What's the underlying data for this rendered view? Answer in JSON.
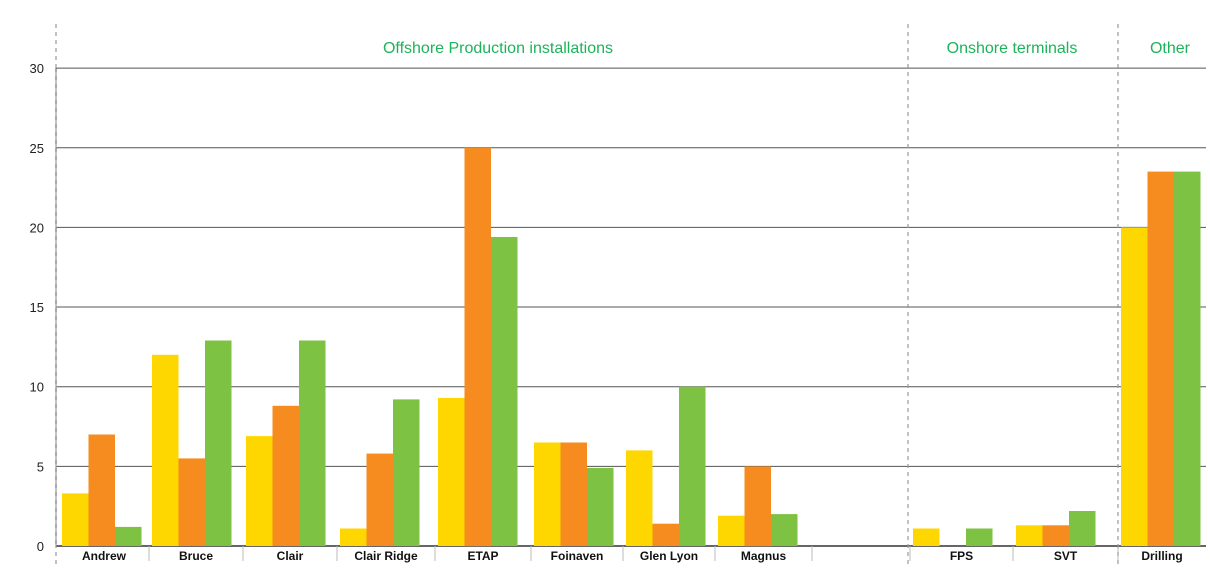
{
  "chart_data": {
    "type": "bar",
    "title": "",
    "xlabel": "",
    "ylabel": "",
    "ylim": [
      0,
      32
    ],
    "yticks": [
      0,
      5,
      10,
      15,
      20,
      25,
      30
    ],
    "grid": true,
    "legend": "none",
    "groups": [
      {
        "label": "Offshore Production installations",
        "categories": [
          "Andrew",
          "Bruce",
          "Clair",
          "Clair Ridge",
          "ETAP",
          "Foinaven",
          "Glen Lyon",
          "Magnus",
          ""
        ]
      },
      {
        "label": "Onshore terminals",
        "categories": [
          "FPS",
          "SVT"
        ]
      },
      {
        "label": "Other",
        "categories": [
          "Drilling"
        ]
      }
    ],
    "categories": [
      "Andrew",
      "Bruce",
      "Clair",
      "Clair Ridge",
      "ETAP",
      "Foinaven",
      "Glen Lyon",
      "Magnus",
      "",
      "FPS",
      "SVT",
      "Drilling"
    ],
    "series": [
      {
        "color": "#ffd700",
        "values": [
          3.3,
          12.0,
          6.9,
          1.1,
          9.3,
          6.5,
          6.0,
          1.9,
          null,
          1.1,
          1.3,
          20.0
        ]
      },
      {
        "color": "#f68b1f",
        "values": [
          7.0,
          5.5,
          8.8,
          5.8,
          25.0,
          6.5,
          1.4,
          5.0,
          null,
          0,
          1.3,
          23.5
        ]
      },
      {
        "color": "#7dc242",
        "values": [
          1.2,
          12.9,
          12.9,
          9.2,
          19.4,
          4.9,
          10.0,
          2.0,
          null,
          1.1,
          2.2,
          23.5
        ]
      }
    ],
    "colors": {
      "grid": "#555555",
      "divider": "#999999",
      "group_title": "#1db35a"
    }
  }
}
